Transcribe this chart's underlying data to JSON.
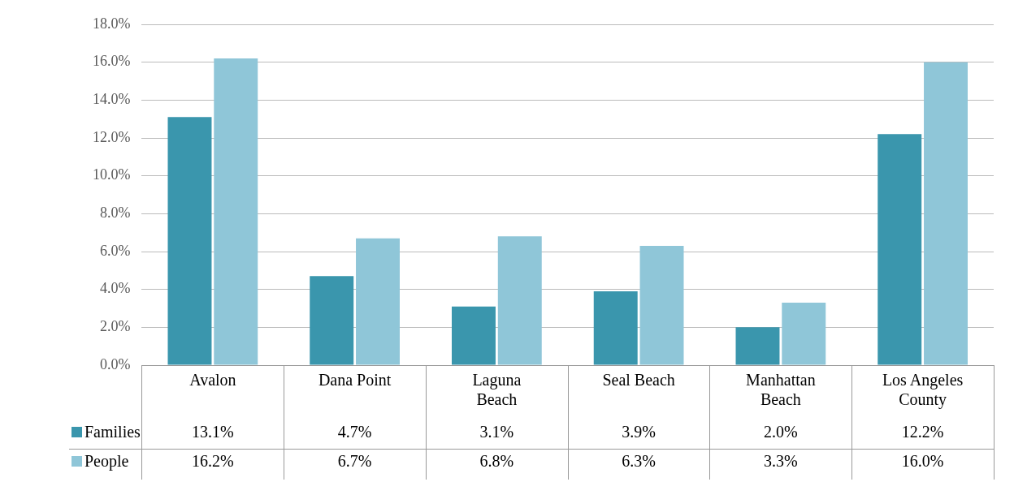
{
  "chart_data": {
    "type": "bar",
    "categories": [
      "Avalon",
      "Dana Point",
      "Laguna Beach",
      "Seal Beach",
      "Manhattan Beach",
      "Los Angeles County"
    ],
    "series": [
      {
        "name": "Families",
        "color": "#3a96ad",
        "values": [
          13.1,
          4.7,
          3.1,
          3.9,
          2.0,
          12.2
        ],
        "value_labels": [
          "13.1%",
          "4.7%",
          "3.1%",
          "3.9%",
          "2.0%",
          "12.2%"
        ]
      },
      {
        "name": "People",
        "color": "#8fc6d8",
        "values": [
          16.2,
          6.7,
          6.8,
          6.3,
          3.3,
          16.0
        ],
        "value_labels": [
          "16.2%",
          "6.7%",
          "6.8%",
          "6.3%",
          "3.3%",
          "16.0%"
        ]
      }
    ],
    "ylim": [
      0,
      18
    ],
    "yticks": [
      {
        "value": 0,
        "label": "0.0%"
      },
      {
        "value": 2,
        "label": "2.0%"
      },
      {
        "value": 4,
        "label": "4.0%"
      },
      {
        "value": 6,
        "label": "6.0%"
      },
      {
        "value": 8,
        "label": "8.0%"
      },
      {
        "value": 10,
        "label": "10.0%"
      },
      {
        "value": 12,
        "label": "12.0%"
      },
      {
        "value": 14,
        "label": "14.0%"
      },
      {
        "value": 16,
        "label": "16.0%"
      },
      {
        "value": 18,
        "label": "18.0%"
      }
    ],
    "grid": "y",
    "legend": "bottom"
  }
}
